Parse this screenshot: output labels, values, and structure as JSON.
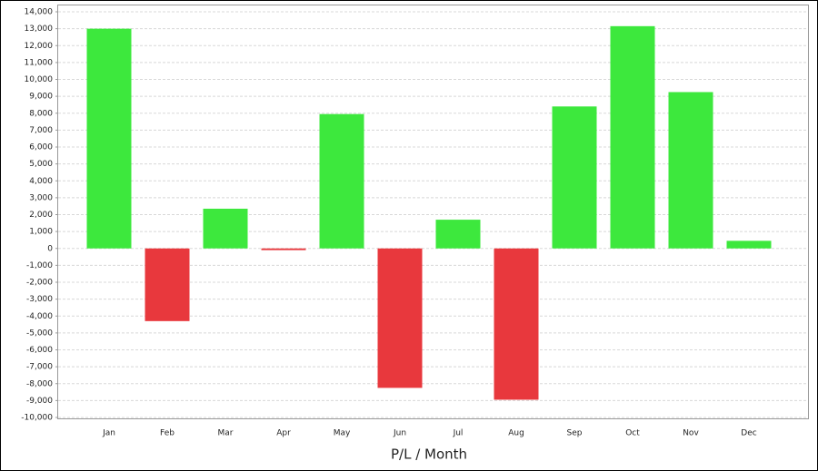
{
  "chart_data": {
    "type": "bar",
    "x_label": "P/L / Month",
    "categories": [
      "Jan",
      "Feb",
      "Mar",
      "Apr",
      "May",
      "Jun",
      "Jul",
      "Aug",
      "Sep",
      "Oct",
      "Nov",
      "Dec"
    ],
    "values": [
      13000,
      -4300,
      2350,
      -100,
      7950,
      -8250,
      1700,
      -8950,
      8400,
      13150,
      9250,
      450
    ],
    "positive_color": "#3de83d",
    "negative_color": "#e8383d",
    "ylim": [
      -10000,
      14000
    ],
    "yticks": [
      {
        "value": -10000,
        "label": "-10,000"
      },
      {
        "value": -9000,
        "label": "-9,000"
      },
      {
        "value": -8000,
        "label": "-8,000"
      },
      {
        "value": -7000,
        "label": "-7,000"
      },
      {
        "value": -6000,
        "label": "-6,000"
      },
      {
        "value": -5000,
        "label": "-5,000"
      },
      {
        "value": -4000,
        "label": "-4,000"
      },
      {
        "value": -3000,
        "label": "-3,000"
      },
      {
        "value": -2000,
        "label": "-2,000"
      },
      {
        "value": -1000,
        "label": "-1,000"
      },
      0,
      {
        "value": 1000,
        "label": "1,000"
      },
      {
        "value": 2000,
        "label": "2,000"
      },
      {
        "value": 3000,
        "label": "3,000"
      },
      {
        "value": 4000,
        "label": "4,000"
      },
      {
        "value": 5000,
        "label": "5,000"
      },
      {
        "value": 6000,
        "label": "6,000"
      },
      {
        "value": 7000,
        "label": "7,000"
      },
      {
        "value": 8000,
        "label": "8,000"
      },
      {
        "value": 9000,
        "label": "9,000"
      },
      {
        "value": 10000,
        "label": "10,000"
      },
      {
        "value": 11000,
        "label": "11,000"
      },
      {
        "value": 12000,
        "label": "12,000"
      },
      {
        "value": 13000,
        "label": "13,000"
      },
      {
        "value": 14000,
        "label": "14,000"
      }
    ],
    "grid": true
  }
}
